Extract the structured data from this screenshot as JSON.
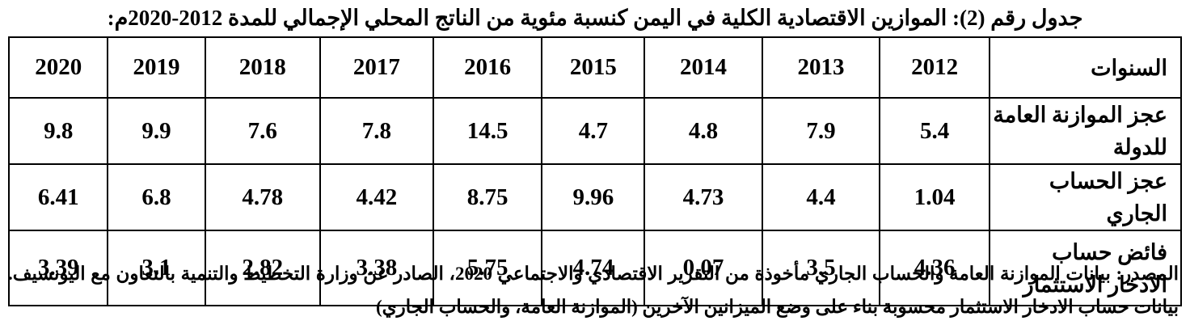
{
  "title": "جدول رقم (2): الموازين الاقتصادية الكلية في اليمن كنسبة مئوية من الناتج المحلي الإجمالي للمدة 2012-2020م:",
  "table": {
    "header_label": "السنوات",
    "years": [
      "2012",
      "2013",
      "2014",
      "2015",
      "2016",
      "2017",
      "2018",
      "2019",
      "2020"
    ],
    "rows": [
      {
        "label": "عجز الموازنة العامة للدولة",
        "values": [
          "5.4",
          "7.9",
          "4.8",
          "4.7",
          "14.5",
          "7.8",
          "7.6",
          "9.9",
          "9.8"
        ]
      },
      {
        "label": "عجز الحساب الجاري",
        "values": [
          "1.04",
          "4.4",
          "4.73",
          "9.96",
          "8.75",
          "4.42",
          "4.78",
          "6.8",
          "6.41"
        ]
      },
      {
        "label": "فائض حساب الادخار الاستثمار",
        "values": [
          "4.36",
          "3.5",
          "0.07",
          "4.74",
          "5.75",
          "3.38",
          "2.82",
          "3.1",
          "3.39"
        ]
      }
    ]
  },
  "note": "المصدر: بيانات الموازنة العامة والحساب الجاري مأخوذة من التقرير الاقتصادي والاجتماعي 2020، الصادر عن وزارة التخطيط والتنمية بالتعاون مع اليونسيف. بيانات حساب الادخار الاستثمار محسوبة بناء على وضع الميزانين الآخرين (الموازنة العامة، والحساب الجاري)"
}
